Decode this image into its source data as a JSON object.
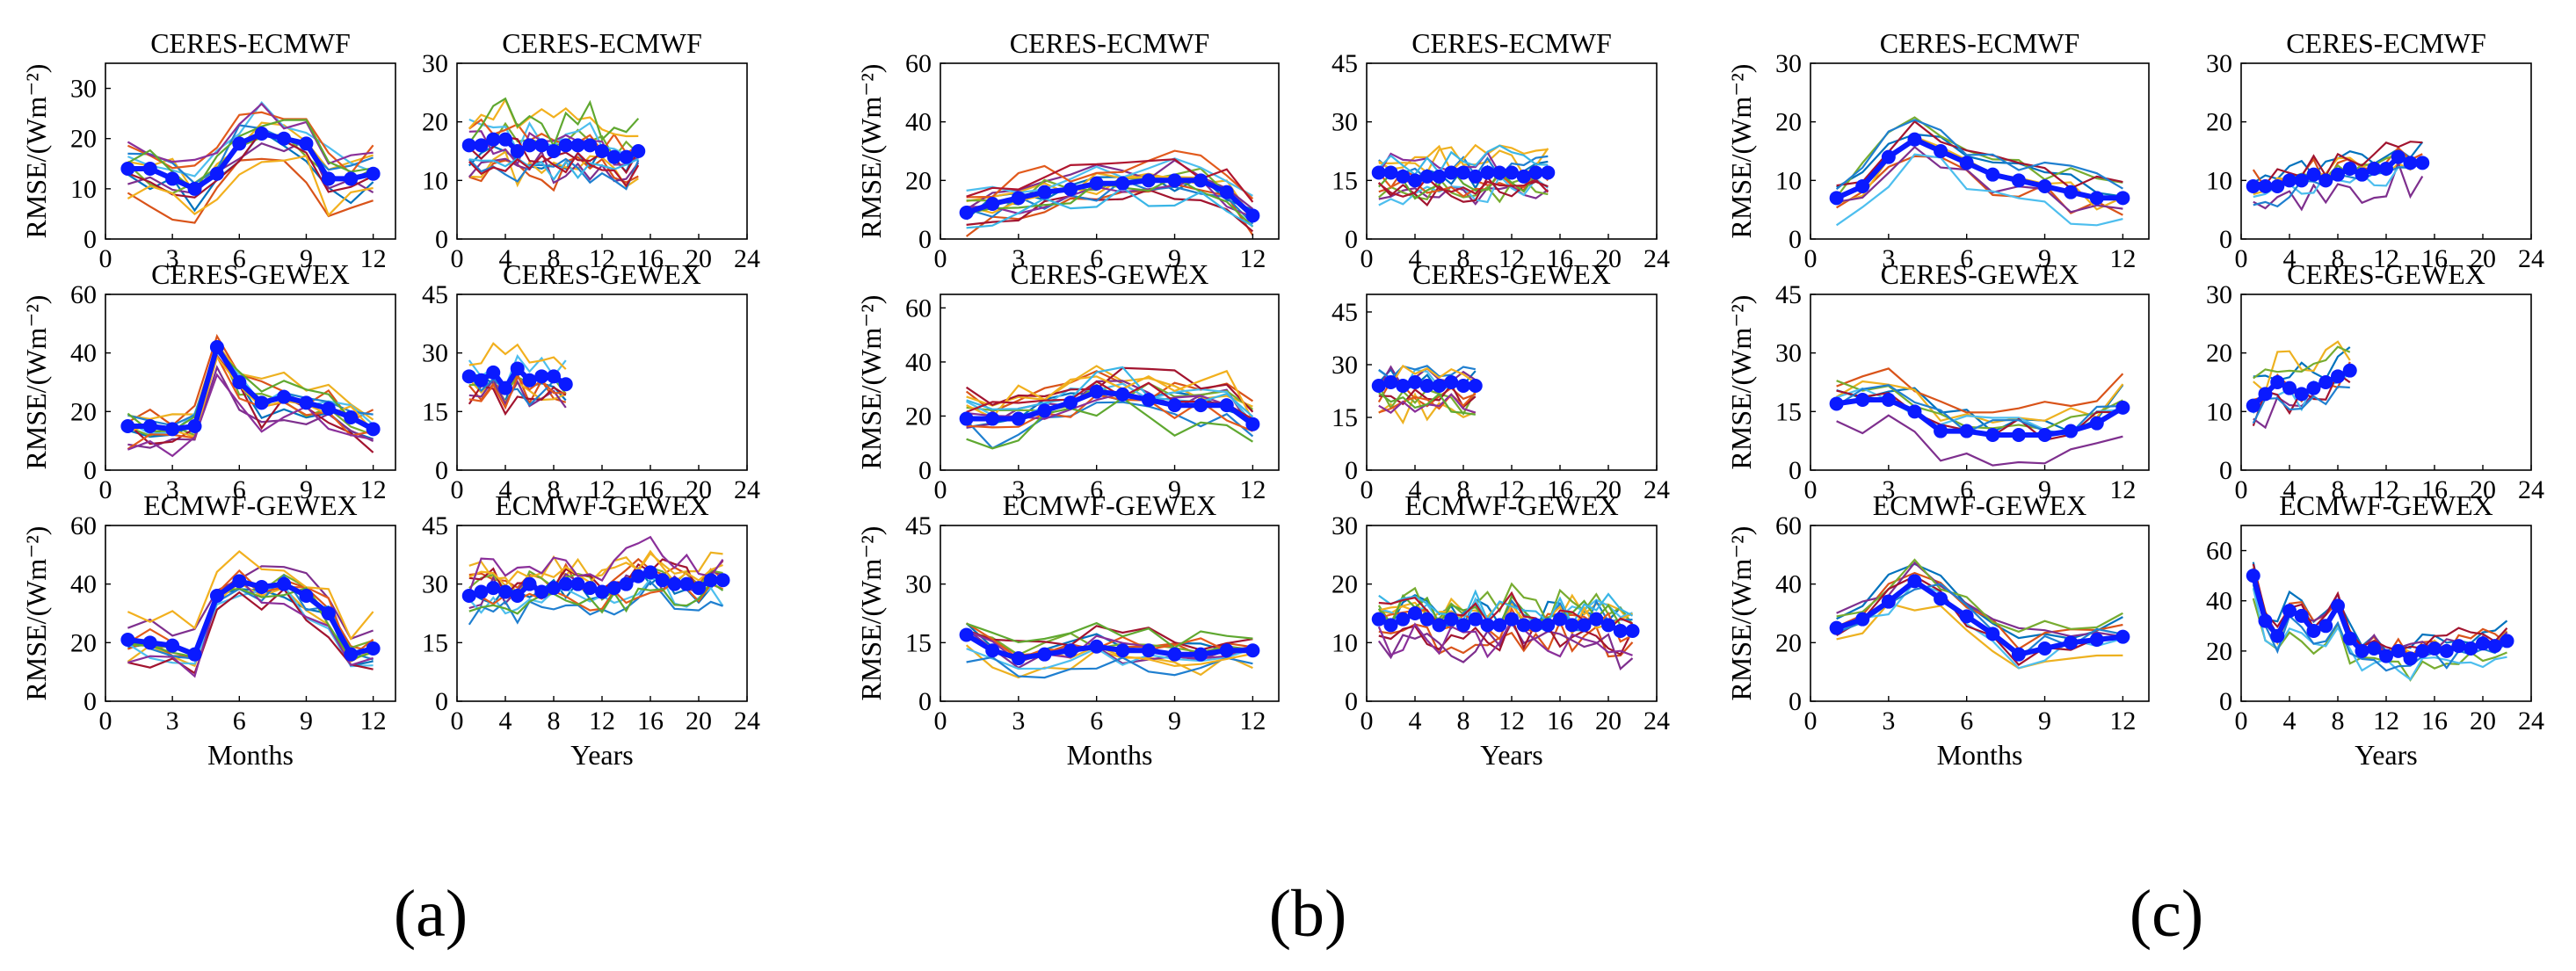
{
  "figure": {
    "panel_labels": [
      "(a)",
      "(b)",
      "(c)"
    ],
    "colors": {
      "mean_line": "#0a1aff",
      "series_palette": [
        "#0072BD",
        "#D95319",
        "#EDB120",
        "#7E2F8E",
        "#77AC30",
        "#4DBEEE",
        "#A2142F",
        "#1f7fd0",
        "#e25a1c",
        "#f2b01e",
        "#8a2f9a",
        "#5fa830",
        "#39b5e6",
        "#b0162f"
      ]
    }
  },
  "chart_data": [
    {
      "id": "a1",
      "group": "(a)",
      "type": "line",
      "title": "CERES-ECMWF",
      "ylabel": "RMSE/(Wm⁻²)",
      "xlabel": "",
      "xlim": [
        0,
        13
      ],
      "xticks": [
        0,
        3,
        6,
        9,
        12
      ],
      "ylim": [
        0,
        35
      ],
      "yticks": [
        0,
        10,
        20,
        30
      ],
      "mean": {
        "x": [
          1,
          2,
          3,
          4,
          5,
          6,
          7,
          8,
          9,
          10,
          11,
          12
        ],
        "y": [
          14,
          14,
          12,
          10,
          13,
          19,
          21,
          20,
          19,
          12,
          12,
          13
        ]
      },
      "n_members": 12,
      "spread": 5
    },
    {
      "id": "a2",
      "group": "(a)",
      "type": "line",
      "title": "CERES-ECMWF",
      "xlabel": "",
      "xlim": [
        0,
        24
      ],
      "xticks": [
        0,
        4,
        8,
        12,
        16,
        20,
        24
      ],
      "ylim": [
        0,
        30
      ],
      "yticks": [
        0,
        10,
        20,
        30
      ],
      "mean": {
        "x": [
          1,
          2,
          3,
          4,
          5,
          6,
          7,
          8,
          9,
          10,
          11,
          12,
          13,
          14,
          15
        ],
        "y": [
          16,
          16,
          17,
          17,
          15,
          16,
          16,
          15,
          16,
          16,
          16,
          15,
          14,
          14,
          15
        ]
      },
      "n_members": 14,
      "spread": 5
    },
    {
      "id": "a3",
      "group": "(a)",
      "type": "line",
      "title": "CERES-GEWEX",
      "ylabel": "RMSE/(Wm⁻²)",
      "xlabel": "",
      "xlim": [
        0,
        13
      ],
      "xticks": [
        0,
        3,
        6,
        9,
        12
      ],
      "ylim": [
        0,
        60
      ],
      "yticks": [
        0,
        20,
        40,
        60
      ],
      "mean": {
        "x": [
          1,
          2,
          3,
          4,
          5,
          6,
          7,
          8,
          9,
          10,
          11,
          12
        ],
        "y": [
          15,
          15,
          14,
          15,
          42,
          30,
          23,
          25,
          23,
          21,
          18,
          14
        ]
      },
      "n_members": 12,
      "spread": 8
    },
    {
      "id": "a4",
      "group": "(a)",
      "type": "line",
      "title": "CERES-GEWEX",
      "xlabel": "",
      "xlim": [
        0,
        24
      ],
      "xticks": [
        0,
        4,
        8,
        12,
        16,
        20,
        24
      ],
      "ylim": [
        0,
        45
      ],
      "yticks": [
        0,
        15,
        30,
        45
      ],
      "mean": {
        "x": [
          1,
          2,
          3,
          4,
          5,
          6,
          7,
          8,
          9
        ],
        "y": [
          24,
          23,
          25,
          21,
          26,
          23,
          24,
          24,
          22
        ]
      },
      "n_members": 10,
      "spread": 6
    },
    {
      "id": "a5",
      "group": "(a)",
      "type": "line",
      "title": "ECMWF-GEWEX",
      "ylabel": "RMSE/(Wm⁻²)",
      "xlabel": "Months",
      "xlim": [
        0,
        13
      ],
      "xticks": [
        0,
        3,
        6,
        9,
        12
      ],
      "ylim": [
        0,
        60
      ],
      "yticks": [
        0,
        20,
        40,
        60
      ],
      "mean": {
        "x": [
          1,
          2,
          3,
          4,
          5,
          6,
          7,
          8,
          9,
          10,
          11,
          12
        ],
        "y": [
          21,
          20,
          19,
          16,
          36,
          41,
          39,
          40,
          36,
          30,
          16,
          18
        ]
      },
      "n_members": 12,
      "spread": 8
    },
    {
      "id": "a6",
      "group": "(a)",
      "type": "line",
      "title": "ECMWF-GEWEX",
      "xlabel": "Years",
      "xlim": [
        0,
        24
      ],
      "xticks": [
        0,
        4,
        8,
        12,
        16,
        20,
        24
      ],
      "ylim": [
        0,
        45
      ],
      "yticks": [
        0,
        15,
        30,
        45
      ],
      "mean": {
        "x": [
          1,
          2,
          3,
          4,
          5,
          6,
          7,
          8,
          9,
          10,
          11,
          12,
          13,
          14,
          15,
          16,
          17,
          18,
          19,
          20,
          21,
          22
        ],
        "y": [
          27,
          28,
          29,
          28,
          27,
          30,
          28,
          29,
          30,
          30,
          29,
          28,
          29,
          30,
          32,
          33,
          31,
          30,
          30,
          29,
          31,
          31
        ]
      },
      "n_members": 12,
      "spread": 6
    },
    {
      "id": "b1",
      "group": "(b)",
      "type": "line",
      "title": "CERES-ECMWF",
      "ylabel": "RMSE/(Wm⁻²)",
      "xlabel": "",
      "xlim": [
        0,
        13
      ],
      "xticks": [
        0,
        3,
        6,
        9,
        12
      ],
      "ylim": [
        0,
        60
      ],
      "yticks": [
        0,
        20,
        40,
        60
      ],
      "mean": {
        "x": [
          1,
          2,
          3,
          4,
          5,
          6,
          7,
          8,
          9,
          10,
          11,
          12
        ],
        "y": [
          9,
          12,
          14,
          16,
          17,
          19,
          19,
          20,
          20,
          20,
          16,
          8
        ]
      },
      "n_members": 14,
      "spread": 7
    },
    {
      "id": "b2",
      "group": "(b)",
      "type": "line",
      "title": "CERES-ECMWF",
      "xlabel": "",
      "xlim": [
        0,
        24
      ],
      "xticks": [
        0,
        4,
        8,
        12,
        16,
        20,
        24
      ],
      "ylim": [
        0,
        45
      ],
      "yticks": [
        0,
        15,
        30,
        45
      ],
      "mean": {
        "x": [
          1,
          2,
          3,
          4,
          5,
          6,
          7,
          8,
          9,
          10,
          11,
          12,
          13,
          14,
          15
        ],
        "y": [
          17,
          17,
          16,
          15,
          16,
          16,
          17,
          17,
          16,
          17,
          17,
          17,
          16,
          17,
          17
        ]
      },
      "n_members": 14,
      "spread": 6
    },
    {
      "id": "b3",
      "group": "(b)",
      "type": "line",
      "title": "CERES-GEWEX",
      "ylabel": "RMSE/(Wm⁻²)",
      "xlabel": "",
      "xlim": [
        0,
        13
      ],
      "xticks": [
        0,
        3,
        6,
        9,
        12
      ],
      "ylim": [
        0,
        65
      ],
      "yticks": [
        0,
        20,
        40,
        60
      ],
      "mean": {
        "x": [
          1,
          2,
          3,
          4,
          5,
          6,
          7,
          8,
          9,
          10,
          11,
          12
        ],
        "y": [
          19,
          19,
          19,
          22,
          25,
          29,
          28,
          26,
          24,
          24,
          24,
          17
        ]
      },
      "n_members": 14,
      "spread": 9
    },
    {
      "id": "b4",
      "group": "(b)",
      "type": "line",
      "title": "CERES-GEWEX",
      "xlabel": "",
      "xlim": [
        0,
        24
      ],
      "xticks": [
        0,
        4,
        8,
        12,
        16,
        20,
        24
      ],
      "ylim": [
        0,
        50
      ],
      "yticks": [
        0,
        15,
        30,
        45
      ],
      "mean": {
        "x": [
          1,
          2,
          3,
          4,
          5,
          6,
          7,
          8,
          9
        ],
        "y": [
          24,
          25,
          24,
          25,
          24,
          24,
          25,
          24,
          24
        ]
      },
      "n_members": 12,
      "spread": 7
    },
    {
      "id": "b5",
      "group": "(b)",
      "type": "line",
      "title": "ECMWF-GEWEX",
      "ylabel": "RMSE/(Wm⁻²)",
      "xlabel": "Months",
      "xlim": [
        0,
        13
      ],
      "xticks": [
        0,
        3,
        6,
        9,
        12
      ],
      "ylim": [
        0,
        45
      ],
      "yticks": [
        0,
        15,
        30,
        45
      ],
      "mean": {
        "x": [
          1,
          2,
          3,
          4,
          5,
          6,
          7,
          8,
          9,
          10,
          11,
          12
        ],
        "y": [
          17,
          13,
          11,
          12,
          13,
          14,
          13,
          13,
          12,
          12,
          13,
          13
        ]
      },
      "n_members": 12,
      "spread": 5
    },
    {
      "id": "b6",
      "group": "(b)",
      "type": "line",
      "title": "ECMWF-GEWEX",
      "xlabel": "Years",
      "xlim": [
        0,
        24
      ],
      "xticks": [
        0,
        4,
        8,
        12,
        16,
        20,
        24
      ],
      "ylim": [
        0,
        30
      ],
      "yticks": [
        0,
        10,
        20,
        30
      ],
      "mean": {
        "x": [
          1,
          2,
          3,
          4,
          5,
          6,
          7,
          8,
          9,
          10,
          11,
          12,
          13,
          14,
          15,
          16,
          17,
          18,
          19,
          20,
          21,
          22
        ],
        "y": [
          14,
          13,
          14,
          15,
          14,
          13,
          14,
          13,
          14,
          13,
          13,
          14,
          13,
          13,
          13,
          14,
          13,
          13,
          14,
          13,
          12,
          12
        ]
      },
      "n_members": 14,
      "spread": 5
    },
    {
      "id": "c1",
      "group": "(c)",
      "type": "line",
      "title": "CERES-ECMWF",
      "ylabel": "RMSE/(Wm⁻²)",
      "xlabel": "",
      "xlim": [
        0,
        13
      ],
      "xticks": [
        0,
        3,
        6,
        9,
        12
      ],
      "ylim": [
        0,
        30
      ],
      "yticks": [
        0,
        10,
        20,
        30
      ],
      "mean": {
        "x": [
          1,
          2,
          3,
          4,
          5,
          6,
          7,
          8,
          9,
          10,
          11,
          12
        ],
        "y": [
          7,
          9,
          14,
          17,
          15,
          13,
          11,
          10,
          9,
          8,
          7,
          7
        ]
      },
      "n_members": 8,
      "spread": 4
    },
    {
      "id": "c2",
      "group": "(c)",
      "type": "line",
      "title": "CERES-ECMWF",
      "xlabel": "",
      "xlim": [
        0,
        24
      ],
      "xticks": [
        0,
        4,
        8,
        12,
        16,
        20,
        24
      ],
      "ylim": [
        0,
        30
      ],
      "yticks": [
        0,
        10,
        20,
        30
      ],
      "mean": {
        "x": [
          1,
          2,
          3,
          4,
          5,
          6,
          7,
          8,
          9,
          10,
          11,
          12,
          13,
          14,
          15
        ],
        "y": [
          9,
          9,
          9,
          10,
          10,
          11,
          10,
          11,
          12,
          11,
          12,
          12,
          14,
          13,
          13
        ]
      },
      "n_members": 8,
      "spread": 4
    },
    {
      "id": "c3",
      "group": "(c)",
      "type": "line",
      "title": "CERES-GEWEX",
      "ylabel": "RMSE/(Wm⁻²)",
      "xlabel": "",
      "xlim": [
        0,
        13
      ],
      "xticks": [
        0,
        3,
        6,
        9,
        12
      ],
      "ylim": [
        0,
        45
      ],
      "yticks": [
        0,
        15,
        30,
        45
      ],
      "mean": {
        "x": [
          1,
          2,
          3,
          4,
          5,
          6,
          7,
          8,
          9,
          10,
          11,
          12
        ],
        "y": [
          17,
          18,
          18,
          15,
          10,
          10,
          9,
          9,
          9,
          10,
          12,
          16
        ]
      },
      "n_members": 8,
      "spread": 6
    },
    {
      "id": "c4",
      "group": "(c)",
      "type": "line",
      "title": "CERES-GEWEX",
      "xlabel": "",
      "xlim": [
        0,
        24
      ],
      "xticks": [
        0,
        4,
        8,
        12,
        16,
        20,
        24
      ],
      "ylim": [
        0,
        30
      ],
      "yticks": [
        0,
        10,
        20,
        30
      ],
      "mean": {
        "x": [
          1,
          2,
          3,
          4,
          5,
          6,
          7,
          8,
          9
        ],
        "y": [
          11,
          13,
          15,
          14,
          13,
          14,
          15,
          16,
          17
        ]
      },
      "n_members": 8,
      "spread": 5
    },
    {
      "id": "c5",
      "group": "(c)",
      "type": "line",
      "title": "ECMWF-GEWEX",
      "ylabel": "RMSE/(Wm⁻²)",
      "xlabel": "Months",
      "xlim": [
        0,
        13
      ],
      "xticks": [
        0,
        3,
        6,
        9,
        12
      ],
      "ylim": [
        0,
        60
      ],
      "yticks": [
        0,
        20,
        40,
        60
      ],
      "mean": {
        "x": [
          1,
          2,
          3,
          4,
          5,
          6,
          7,
          8,
          9,
          10,
          11,
          12
        ],
        "y": [
          25,
          28,
          34,
          41,
          35,
          29,
          23,
          16,
          18,
          20,
          21,
          22
        ]
      },
      "n_members": 8,
      "spread": 8
    },
    {
      "id": "c6",
      "group": "(c)",
      "type": "line",
      "title": "ECMWF-GEWEX",
      "xlabel": "Years",
      "xlim": [
        0,
        24
      ],
      "xticks": [
        0,
        4,
        8,
        12,
        16,
        20,
        24
      ],
      "ylim": [
        0,
        70
      ],
      "yticks": [
        0,
        20,
        40,
        60
      ],
      "mean": {
        "x": [
          1,
          2,
          3,
          4,
          5,
          6,
          7,
          8,
          9,
          10,
          11,
          12,
          13,
          14,
          15,
          16,
          17,
          18,
          19,
          20,
          21,
          22
        ],
        "y": [
          50,
          32,
          26,
          36,
          34,
          28,
          30,
          38,
          25,
          20,
          21,
          18,
          20,
          17,
          20,
          21,
          20,
          22,
          21,
          23,
          22,
          24
        ]
      },
      "n_members": 8,
      "spread": 7
    }
  ]
}
